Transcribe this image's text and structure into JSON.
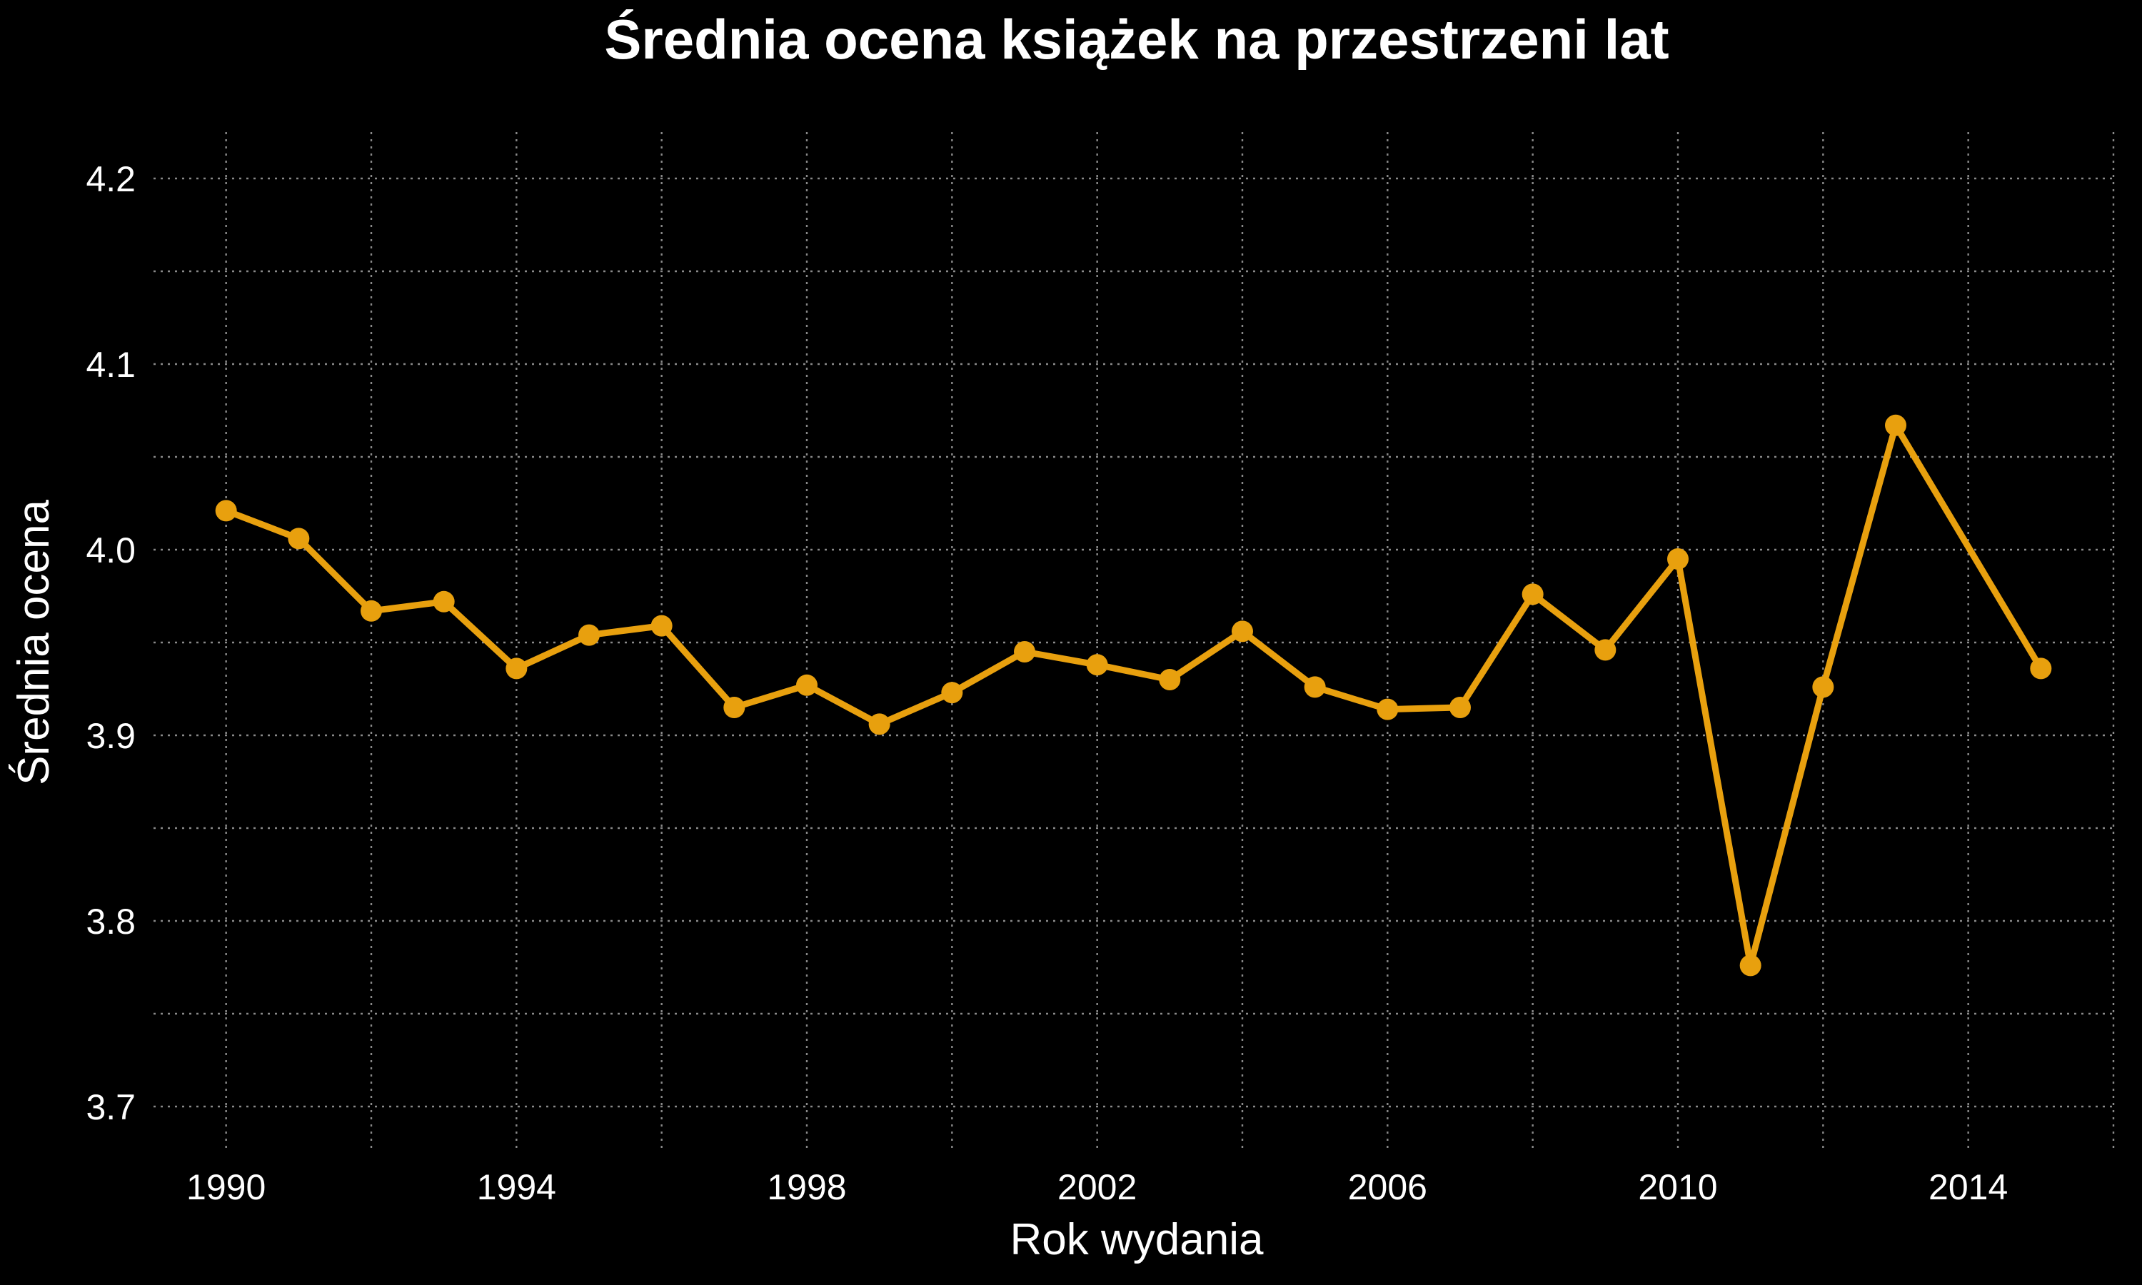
{
  "chart_data": {
    "type": "line",
    "title": "Średnia ocena książek na przestrzeni lat",
    "xlabel": "Rok wydania",
    "ylabel": "Średnia ocena",
    "x": [
      1990,
      1991,
      1992,
      1993,
      1994,
      1995,
      1996,
      1997,
      1998,
      1999,
      2000,
      2001,
      2002,
      2003,
      2004,
      2005,
      2006,
      2007,
      2008,
      2009,
      2010,
      2011,
      2012,
      2013,
      2015
    ],
    "series": [
      {
        "values": [
          4.021,
          4.006,
          3.967,
          3.972,
          3.936,
          3.954,
          3.959,
          3.915,
          3.927,
          3.906,
          3.923,
          3.945,
          3.938,
          3.93,
          3.956,
          3.926,
          3.914,
          3.915,
          3.976,
          3.946,
          3.995,
          3.776,
          3.926,
          4.067,
          3.936
        ],
        "color": "#e8a00e"
      }
    ],
    "xlim": [
      1989,
      2016
    ],
    "ylim": [
      3.675,
      4.225
    ],
    "x_ticks": [
      1990,
      1994,
      1998,
      2002,
      2006,
      2010,
      2014
    ],
    "x_tick_labels": [
      "1990",
      "1994",
      "1998",
      "2002",
      "2006",
      "2010",
      "2014"
    ],
    "x_minor_grid": [
      1992,
      1996,
      2000,
      2004,
      2008,
      2012,
      2016
    ],
    "y_ticks": [
      3.7,
      3.8,
      3.9,
      4.0,
      4.1,
      4.2
    ],
    "y_tick_labels": [
      "3.7",
      "3.8",
      "3.9",
      "4.0",
      "4.1",
      "4.2"
    ],
    "y_minor_grid": [
      3.75,
      3.85,
      3.95,
      4.05,
      4.15
    ],
    "grid": true,
    "legend": false,
    "background": "#000000",
    "text_color": "#ffffff",
    "grid_color": "#8a8a8a"
  }
}
